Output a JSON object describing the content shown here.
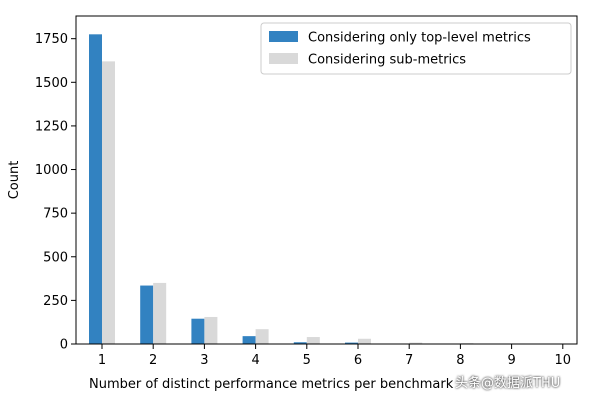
{
  "chart_data": {
    "type": "bar",
    "categories": [
      "1",
      "2",
      "3",
      "4",
      "5",
      "6",
      "7",
      "8",
      "9",
      "10"
    ],
    "series": [
      {
        "name": "Considering only top-level metrics",
        "color": "#3282c1",
        "values": [
          1775,
          335,
          145,
          45,
          10,
          8,
          2,
          1,
          1,
          0
        ]
      },
      {
        "name": "Considering sub-metrics",
        "color": "#d9d9d9",
        "values": [
          1620,
          350,
          155,
          85,
          40,
          30,
          8,
          5,
          3,
          2
        ]
      }
    ],
    "xlabel": "Number of distinct performance metrics per benchmark",
    "ylabel": "Count",
    "yticks": [
      0,
      250,
      500,
      750,
      1000,
      1250,
      1500,
      1750
    ],
    "ylim": [
      0,
      1880
    ],
    "legend_position": "top-right",
    "grid": false
  },
  "watermark": "头条@数据派THU"
}
